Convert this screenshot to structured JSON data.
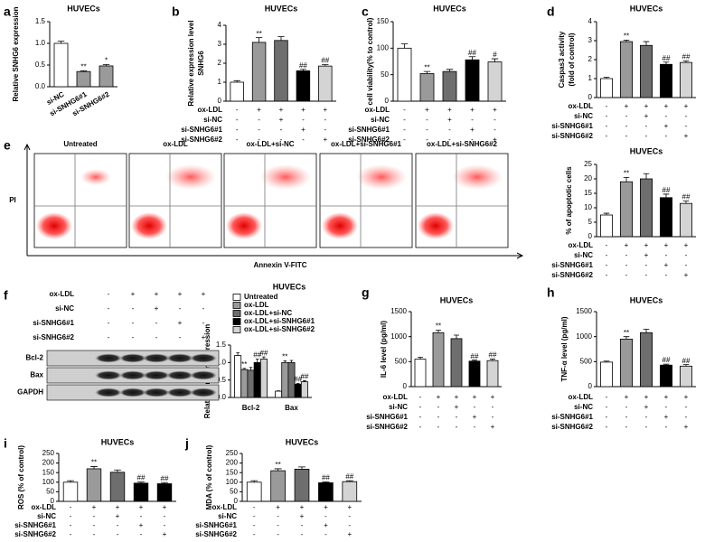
{
  "chart_data": [
    {
      "panel": "a",
      "type": "bar",
      "title": "HUVECs",
      "ylabel": "Relative SNHG6 expression",
      "categories": [
        "si-NC",
        "si-SNHG6#1",
        "si-SNHG6#2"
      ],
      "values": [
        1.0,
        0.35,
        0.48
      ],
      "errors": [
        0.05,
        0.02,
        0.03
      ],
      "colors": [
        "#ffffff",
        "#9a9a9a",
        "#9a9a9a"
      ],
      "annotations": [
        null,
        "**",
        "*"
      ],
      "ylim": [
        0,
        1.5
      ],
      "yticks": [
        {
          "value": 0,
          "label": "0.0"
        },
        0.5,
        {
          "value": 1,
          "label": "1.0"
        },
        1.5
      ]
    },
    {
      "panel": "b",
      "type": "bar",
      "title": "HUVECs",
      "ylabel": [
        "Relative expression level",
        "SNHG6"
      ],
      "values": [
        1.0,
        3.1,
        3.2,
        1.6,
        1.85
      ],
      "errors": [
        0.08,
        0.25,
        0.2,
        0.08,
        0.08
      ],
      "colors": [
        "#ffffff",
        "#9a9a9a",
        "#6e6e6e",
        "#000000",
        "#d4d4d4"
      ],
      "annotations": [
        null,
        "**",
        null,
        "##",
        "##"
      ],
      "ylim": [
        0,
        4
      ],
      "yticks": [
        0,
        1,
        2,
        3,
        4
      ],
      "treatments": [
        {
          "name": "ox-LDL",
          "signs": [
            "-",
            "+",
            "+",
            "+",
            "+"
          ]
        },
        {
          "name": "si-NC",
          "signs": [
            "-",
            "-",
            "+",
            "-",
            "-"
          ]
        },
        {
          "name": "si-SNHG6#1",
          "signs": [
            "-",
            "-",
            "-",
            "+",
            "-"
          ]
        },
        {
          "name": "si-SNHG6#2",
          "signs": [
            "-",
            "-",
            "-",
            "-",
            "+"
          ]
        }
      ]
    },
    {
      "panel": "c",
      "type": "bar",
      "title": "HUVECs",
      "ylabel": "cell viability(% to control)",
      "values": [
        100,
        52,
        56,
        78,
        74
      ],
      "errors": [
        8,
        4,
        4,
        6,
        6
      ],
      "colors": [
        "#ffffff",
        "#9a9a9a",
        "#6e6e6e",
        "#000000",
        "#d4d4d4"
      ],
      "annotations": [
        null,
        "**",
        null,
        "##",
        "#"
      ],
      "ylim": [
        0,
        150
      ],
      "yticks": [
        0,
        50,
        100,
        150
      ],
      "treatments": [
        {
          "name": "ox-LDL",
          "signs": [
            "-",
            "+",
            "+",
            "+",
            "+"
          ]
        },
        {
          "name": "si-NC",
          "signs": [
            "-",
            "-",
            "+",
            "-",
            "-"
          ]
        },
        {
          "name": "si-SNHG6#1",
          "signs": [
            "-",
            "-",
            "-",
            "+",
            "-"
          ]
        },
        {
          "name": "si-SNHG6#2",
          "signs": [
            "-",
            "-",
            "-",
            "-",
            "+"
          ]
        }
      ]
    },
    {
      "panel": "d",
      "type": "bar",
      "title": "HUVECs",
      "ylabel": [
        "Caspas3 activity",
        "(fold of control)"
      ],
      "values": [
        1.0,
        2.95,
        2.75,
        1.75,
        1.85
      ],
      "errors": [
        0.07,
        0.08,
        0.2,
        0.12,
        0.08
      ],
      "colors": [
        "#ffffff",
        "#9a9a9a",
        "#6e6e6e",
        "#000000",
        "#d4d4d4"
      ],
      "annotations": [
        null,
        "**",
        null,
        "##",
        "##"
      ],
      "ylim": [
        0,
        4
      ],
      "yticks": [
        0,
        1,
        2,
        3,
        4
      ],
      "treatments": [
        {
          "name": "ox-LDL",
          "signs": [
            "-",
            "+",
            "+",
            "+",
            "+"
          ]
        },
        {
          "name": "si-NC",
          "signs": [
            "-",
            "-",
            "+",
            "-",
            "-"
          ]
        },
        {
          "name": "si-SNHG6#1",
          "signs": [
            "-",
            "-",
            "-",
            "+",
            "-"
          ]
        },
        {
          "name": "si-SNHG6#2",
          "signs": [
            "-",
            "-",
            "-",
            "-",
            "+"
          ]
        }
      ]
    },
    {
      "type": "bar",
      "title": "HUVECs",
      "ylabel": "% of apoptotic cells",
      "values": [
        7.5,
        19,
        20,
        13.5,
        11.5
      ],
      "errors": [
        0.6,
        1.5,
        1.8,
        1.2,
        0.8
      ],
      "colors": [
        "#ffffff",
        "#9a9a9a",
        "#6e6e6e",
        "#000000",
        "#d4d4d4"
      ],
      "annotations": [
        null,
        "**",
        null,
        "##",
        "##"
      ],
      "ylim": [
        0,
        25
      ],
      "yticks": [
        0,
        5,
        10,
        15,
        20,
        25
      ],
      "treatments": [
        {
          "name": "ox-LDL",
          "signs": [
            "-",
            "+",
            "+",
            "+",
            "+"
          ]
        },
        {
          "name": "si-NC",
          "signs": [
            "-",
            "-",
            "+",
            "-",
            "-"
          ]
        },
        {
          "name": "si-SNHG6#1",
          "signs": [
            "-",
            "-",
            "-",
            "+",
            "-"
          ]
        },
        {
          "name": "si-SNHG6#2",
          "signs": [
            "-",
            "-",
            "-",
            "-",
            "+"
          ]
        }
      ]
    },
    {
      "type": "bar",
      "title": "HUVECs",
      "ylabel": "Relative protein expression",
      "categories": [
        "Bcl-2",
        "Bax"
      ],
      "ylim": [
        0,
        1.5
      ],
      "yticks": [
        {
          "value": 0,
          "label": "0.0"
        },
        0.5,
        {
          "value": 1,
          "label": "1.0"
        },
        1.5
      ],
      "series": [
        {
          "name": "Untreated",
          "color": "#ffffff",
          "values": [
            1.2,
            0.18
          ],
          "errors": [
            0.08,
            0.01
          ],
          "annotations": [
            null,
            null
          ]
        },
        {
          "name": "ox-LDL",
          "color": "#9a9a9a",
          "values": [
            0.8,
            1.0
          ],
          "errors": [
            0.03,
            0.05
          ],
          "annotations": [
            "**",
            "**"
          ]
        },
        {
          "name": "ox-LDL+si-NC",
          "color": "#6e6e6e",
          "values": [
            0.78,
            1.0
          ],
          "errors": [
            0.08,
            0.06
          ],
          "annotations": [
            null,
            null
          ]
        },
        {
          "name": "ox-LDL+si-SNHG6#1",
          "color": "#000000",
          "values": [
            1.0,
            0.38
          ],
          "errors": [
            0.1,
            0.02
          ],
          "annotations": [
            "##",
            "##"
          ]
        },
        {
          "name": "ox-LDL+si-SNHG6#2",
          "color": "#d4d4d4",
          "values": [
            1.1,
            0.45
          ],
          "errors": [
            0.06,
            0.03
          ],
          "annotations": [
            "##",
            "##"
          ]
        }
      ]
    },
    {
      "panel": "g",
      "type": "bar",
      "title": "HUVECs",
      "ylabel": "IL-6 level (pg/ml)",
      "values": [
        550,
        1080,
        960,
        510,
        520
      ],
      "errors": [
        40,
        50,
        70,
        20,
        30
      ],
      "colors": [
        "#ffffff",
        "#9a9a9a",
        "#6e6e6e",
        "#000000",
        "#d4d4d4"
      ],
      "annotations": [
        null,
        "**",
        null,
        "##",
        "##"
      ],
      "ylim": [
        0,
        1500
      ],
      "yticks": [
        0,
        500,
        1000,
        1500
      ],
      "treatments": [
        {
          "name": "ox-LDL",
          "signs": [
            "-",
            "+",
            "+",
            "+",
            "+"
          ]
        },
        {
          "name": "si-NC",
          "signs": [
            "-",
            "-",
            "+",
            "-",
            "-"
          ]
        },
        {
          "name": "si-SNHG6#1",
          "signs": [
            "-",
            "-",
            "-",
            "+",
            "-"
          ]
        },
        {
          "name": "si-SNHG6#2",
          "signs": [
            "-",
            "-",
            "-",
            "-",
            "+"
          ]
        }
      ]
    },
    {
      "panel": "h",
      "type": "bar",
      "title": "HUVECs",
      "ylabel": "TNF-α level (pg/ml)",
      "values": [
        490,
        950,
        1080,
        430,
        410
      ],
      "errors": [
        20,
        50,
        70,
        20,
        30
      ],
      "colors": [
        "#ffffff",
        "#9a9a9a",
        "#6e6e6e",
        "#000000",
        "#d4d4d4"
      ],
      "annotations": [
        null,
        "**",
        null,
        "##",
        "##"
      ],
      "ylim": [
        0,
        1500
      ],
      "yticks": [
        0,
        500,
        1000,
        1500
      ],
      "treatments": [
        {
          "name": "ox-LDL",
          "signs": [
            "-",
            "+",
            "+",
            "+",
            "+"
          ]
        },
        {
          "name": "si-NC",
          "signs": [
            "-",
            "-",
            "+",
            "-",
            "-"
          ]
        },
        {
          "name": "si-SNHG6#1",
          "signs": [
            "-",
            "-",
            "-",
            "+",
            "-"
          ]
        },
        {
          "name": "si-SNHG6#2",
          "signs": [
            "-",
            "-",
            "-",
            "-",
            "+"
          ]
        }
      ]
    },
    {
      "panel": "i",
      "type": "bar",
      "title": "HUVECs",
      "ylabel": "ROS (% of control)",
      "values": [
        100,
        170,
        152,
        95,
        92
      ],
      "errors": [
        8,
        12,
        12,
        6,
        6
      ],
      "colors": [
        "#ffffff",
        "#9a9a9a",
        "#6e6e6e",
        "#000000",
        "#000000"
      ],
      "annotations": [
        null,
        "**",
        null,
        "##",
        "##"
      ],
      "ylim": [
        0,
        250
      ],
      "yticks": [
        0,
        50,
        100,
        150,
        200,
        250
      ],
      "treatments": [
        {
          "name": "ox-LDL",
          "signs": [
            "-",
            "+",
            "+",
            "+",
            "+"
          ]
        },
        {
          "name": "si-NC",
          "signs": [
            "-",
            "-",
            "+",
            "-",
            "-"
          ]
        },
        {
          "name": "si-SNHG6#1",
          "signs": [
            "-",
            "-",
            "-",
            "+",
            "-"
          ]
        },
        {
          "name": "si-SNHG6#2",
          "signs": [
            "-",
            "-",
            "-",
            "-",
            "+"
          ]
        }
      ]
    },
    {
      "panel": "j",
      "type": "bar",
      "title": "HUVECs",
      "ylabel": "MDA (% of control)",
      "values": [
        100,
        160,
        168,
        97,
        103
      ],
      "errors": [
        8,
        10,
        12,
        5,
        5
      ],
      "colors": [
        "#ffffff",
        "#9a9a9a",
        "#6e6e6e",
        "#000000",
        "#d4d4d4"
      ],
      "annotations": [
        null,
        "**",
        null,
        "##",
        "##"
      ],
      "ylim": [
        0,
        250
      ],
      "yticks": [
        0,
        50,
        100,
        150,
        200,
        250
      ],
      "treatments": [
        {
          "name": "ox-LDL",
          "signs": [
            "-",
            "+",
            "+",
            "+",
            "+"
          ]
        },
        {
          "name": "si-NC",
          "signs": [
            "-",
            "-",
            "+",
            "-",
            "-"
          ]
        },
        {
          "name": "si-SNHG6#1",
          "signs": [
            "-",
            "-",
            "-",
            "+",
            "-"
          ]
        },
        {
          "name": "si-SNHG6#2",
          "signs": [
            "-",
            "-",
            "-",
            "-",
            "+"
          ]
        }
      ]
    }
  ],
  "flow": {
    "panel": "e",
    "titles": [
      "Untreated",
      "ox-LDL",
      "ox-LDL+si-NC",
      "ox-LDL+si-SNHG6#1",
      "ox-LDL+si-SNHG6#2"
    ],
    "ylabel": "PI",
    "xlabel": "Annexin V-FITC"
  },
  "blot": {
    "panel": "f",
    "treatments": [
      {
        "name": "ox-LDL",
        "signs": [
          "-",
          "+",
          "+",
          "+",
          "+"
        ]
      },
      {
        "name": "si-NC",
        "signs": [
          "-",
          "-",
          "+",
          "-",
          "-"
        ]
      },
      {
        "name": "si-SNHG6#1",
        "signs": [
          "-",
          "-",
          "-",
          "+",
          "-"
        ]
      },
      {
        "name": "si-SNHG6#2",
        "signs": [
          "-",
          "-",
          "-",
          "-",
          "+"
        ]
      }
    ],
    "bands": [
      "Bcl-2",
      "Bax",
      "GAPDH"
    ]
  }
}
